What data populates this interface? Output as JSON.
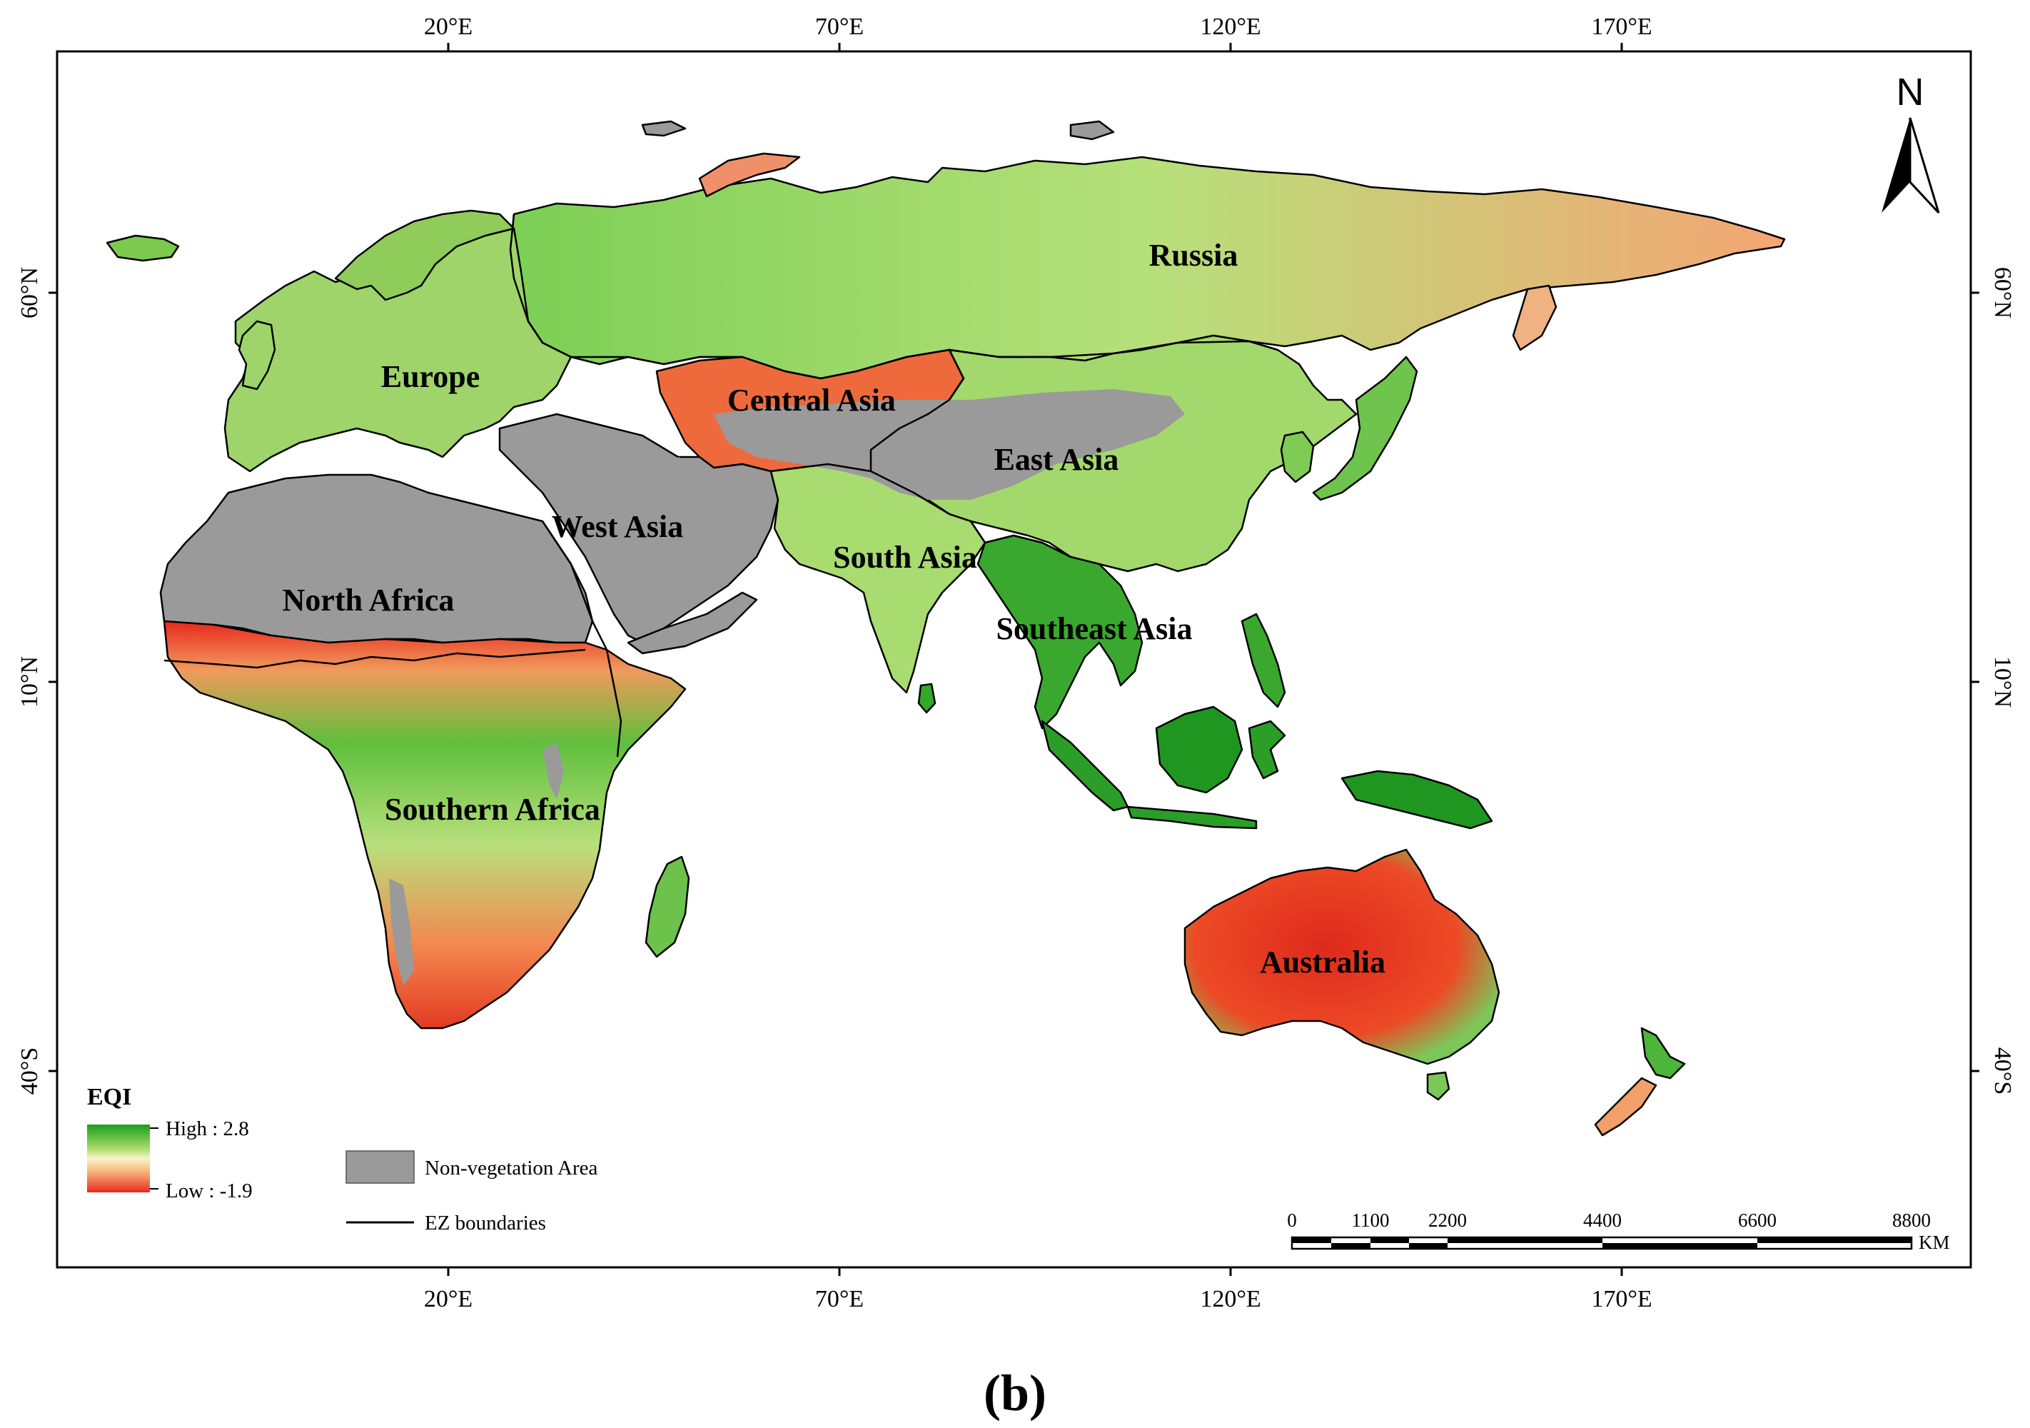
{
  "map": {
    "top_longitude_ticks": [
      "20°E",
      "70°E",
      "120°E",
      "170°E"
    ],
    "bottom_longitude_ticks": [
      "20°E",
      "70°E",
      "120°E",
      "170°E"
    ],
    "left_latitude_ticks": [
      "60°N",
      "10°N",
      "40°S"
    ],
    "right_latitude_ticks": [
      "60°N",
      "10°N",
      "40°S"
    ],
    "north_arrow_label": "N",
    "regions": [
      "Russia",
      "Europe",
      "Central Asia",
      "East Asia",
      "West Asia",
      "South Asia",
      "North Africa",
      "Southeast Asia",
      "Southern Africa",
      "Australia"
    ],
    "colors": {
      "high": "#1aa01a",
      "mid": "#f5f0a0",
      "low": "#e8281e",
      "non_vegetation": "#9a9a9a",
      "boundary": "#000000"
    }
  },
  "legend": {
    "title": "EQI",
    "high_label": "High : 2.8",
    "low_label": "Low : -1.9",
    "non_vegetation_label": "Non-vegetation Area",
    "boundary_label": "EZ boundaries"
  },
  "scale_bar": {
    "ticks": [
      "0",
      "1100",
      "2200",
      "4400",
      "6600",
      "8800"
    ],
    "unit": "KM"
  },
  "caption": "(b)"
}
